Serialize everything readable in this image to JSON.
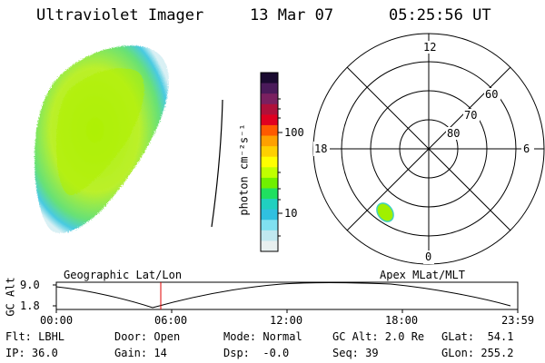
{
  "header": {
    "instrument": "Ultraviolet Imager",
    "date": "13 Mar 07",
    "time": "05:25:56 UT"
  },
  "colorbar": {
    "label": "photon cm⁻²s⁻¹",
    "ticks": [
      "100",
      "10"
    ],
    "colors": [
      "#1a0a30",
      "#4a1a5a",
      "#7a2060",
      "#b0103a",
      "#e00020",
      "#ff5a00",
      "#ffa000",
      "#ffd000",
      "#ffff00",
      "#c0ff00",
      "#70f000",
      "#20e060",
      "#20d0c0",
      "#30c0e0",
      "#80e0f0",
      "#c0e8f0",
      "#e8f0f0"
    ]
  },
  "polar": {
    "mlt_labels": {
      "top": "12",
      "left": "18",
      "right": "6",
      "bottom": "0"
    },
    "lat_labels": [
      "60",
      "70",
      "80"
    ]
  },
  "timeline": {
    "y_label": "GC Alt",
    "y_ticks": [
      "9.0",
      "1.8"
    ],
    "left_title": "Geographic Lat/Lon",
    "right_title": "Apex MLat/MLT",
    "x_ticks": [
      "00:00",
      "06:00",
      "12:00",
      "18:00",
      "23:59"
    ],
    "current_marker": "05:25:56"
  },
  "status": {
    "flt": "Flt: LBHL",
    "ip": "IP: 36.0",
    "door": "Door: Open",
    "gain": "Gain: 14",
    "mode": "Mode: Normal",
    "dsp": "Dsp:  -0.0",
    "gcalt": "GC Alt: 2.0 Re",
    "seq": "Seq: 39",
    "glat": "GLat:  54.1",
    "glon": "GLon: 255.2"
  }
}
